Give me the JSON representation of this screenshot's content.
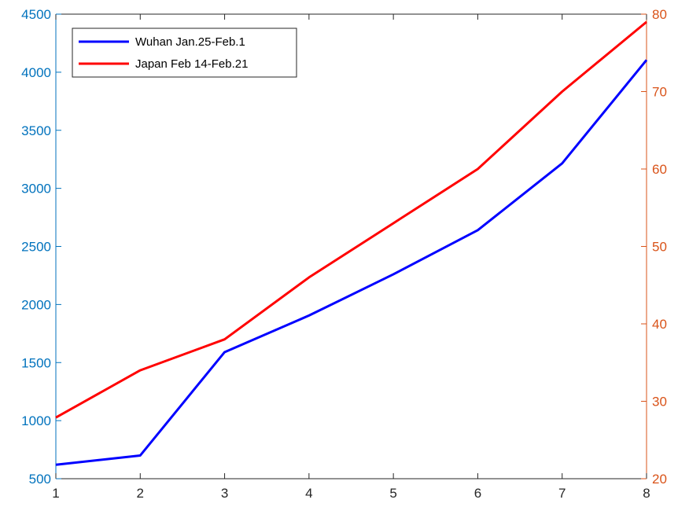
{
  "chart_data": {
    "type": "line",
    "x": [
      1,
      2,
      3,
      4,
      5,
      6,
      7,
      8
    ],
    "xlim": [
      1,
      8
    ],
    "x_ticks": [
      "1",
      "2",
      "3",
      "4",
      "5",
      "6",
      "7",
      "8"
    ],
    "y_left": {
      "lim": [
        500,
        4500
      ],
      "ticks": [
        "500",
        "1000",
        "1500",
        "2000",
        "2500",
        "3000",
        "3500",
        "4000",
        "4500"
      ],
      "color": "#0072BD"
    },
    "y_right": {
      "lim": [
        20,
        80
      ],
      "ticks": [
        "20",
        "30",
        "40",
        "50",
        "60",
        "70",
        "80"
      ],
      "color": "#D95319"
    },
    "series": [
      {
        "name": "Wuhan Jan.25-Feb.1",
        "axis": "left",
        "color": "#0000FF",
        "values": [
          620,
          700,
          1590,
          1905,
          2260,
          2640,
          3215,
          4105
        ]
      },
      {
        "name": "Japan Feb 14-Feb.21",
        "axis": "right",
        "color": "#FF0000",
        "values": [
          27.9,
          34.0,
          38.0,
          46.0,
          53.0,
          60.0,
          70.0,
          79.0
        ]
      }
    ],
    "grid": false,
    "legend_position": "top-left"
  }
}
